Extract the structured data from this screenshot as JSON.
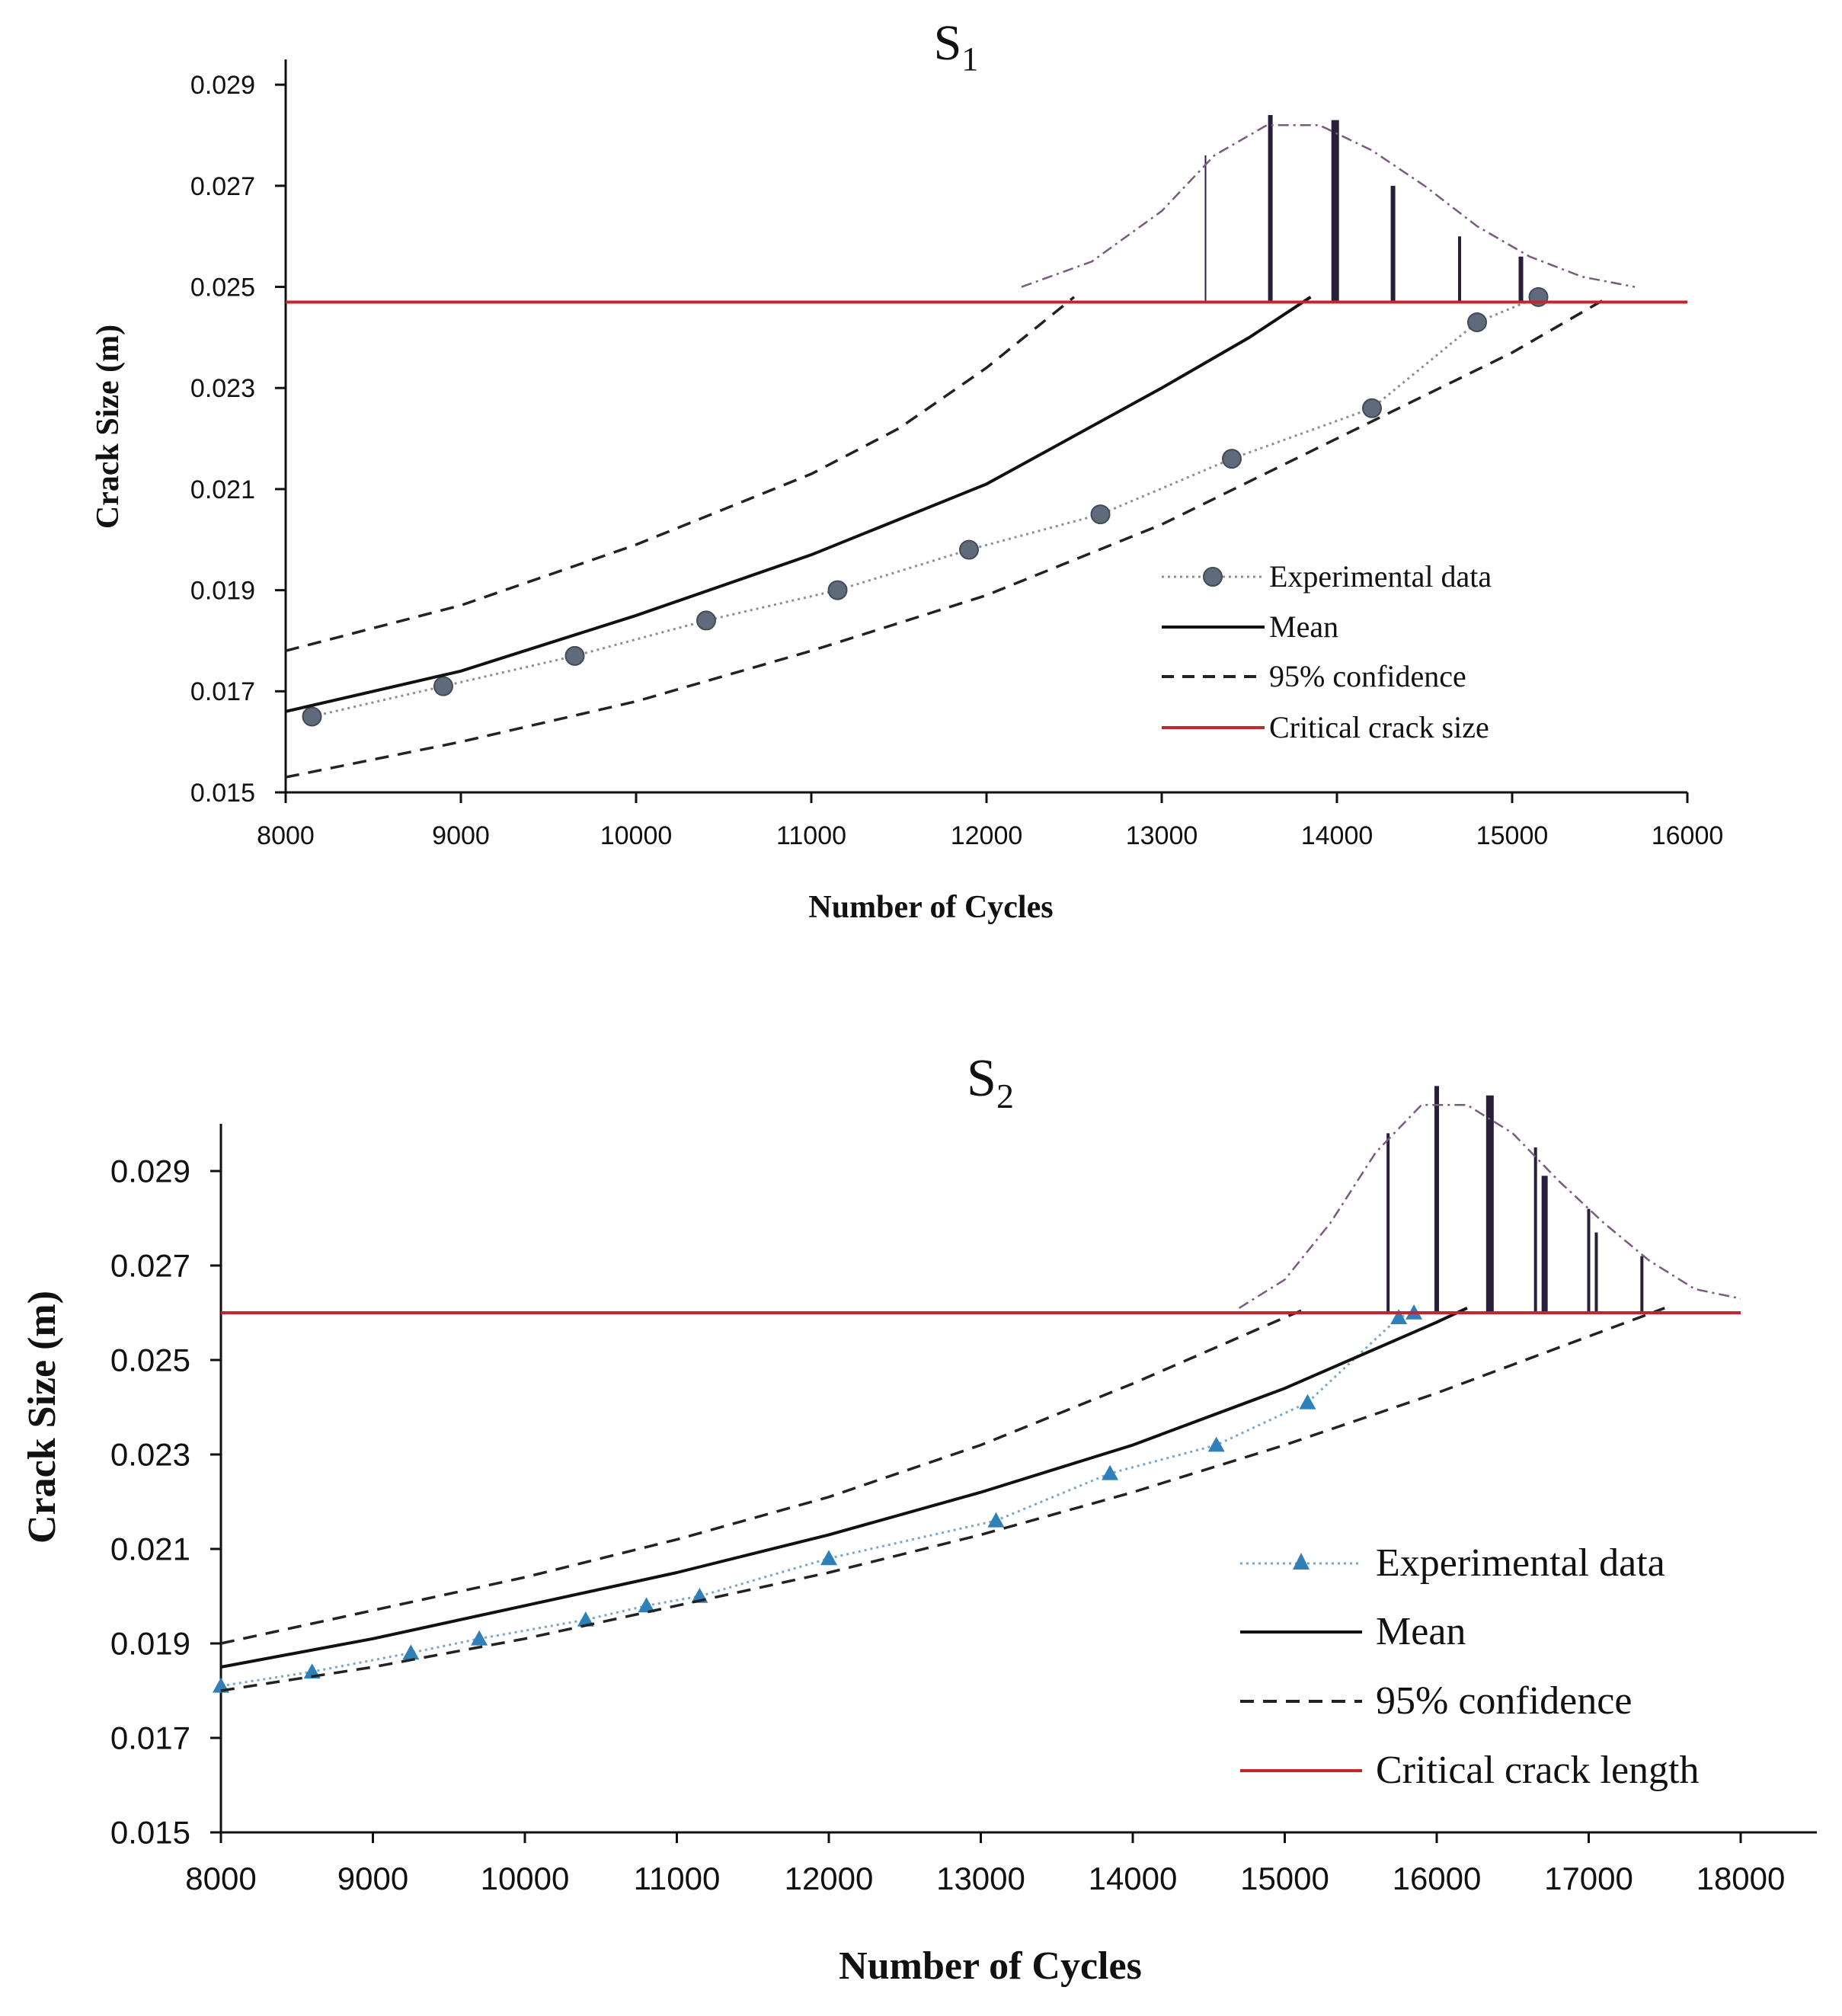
{
  "chart_data": [
    {
      "type": "line",
      "title": "S",
      "title_subscript": "1",
      "xlabel": "Number of Cycles",
      "ylabel": "Crack Size (m)",
      "xlim": [
        8000,
        16000
      ],
      "ylim": [
        0.015,
        0.0295
      ],
      "x_ticks": [
        8000,
        9000,
        10000,
        11000,
        12000,
        13000,
        14000,
        15000,
        16000
      ],
      "y_ticks": [
        0.015,
        0.017,
        0.019,
        0.021,
        0.023,
        0.025,
        0.027,
        0.029
      ],
      "y_tick_labels": [
        "0.015",
        "0.017",
        "0.019",
        "0.021",
        "0.023",
        "0.025",
        "0.027",
        "0.029"
      ],
      "x_tick_labels": [
        "8000",
        "9000",
        "10000",
        "11000",
        "12000",
        "13000",
        "14000",
        "15000",
        "16000"
      ],
      "critical_level": 0.0247,
      "colors": {
        "experimental": "#5f6a7b",
        "mean": "#111111",
        "confidence": "#222222",
        "critical": "#c0282d",
        "histogram": "#2a1f3a",
        "pdf": "#7a5a80"
      },
      "series": [
        {
          "name": "Experimental data",
          "marker": "circle",
          "x": [
            8150,
            8900,
            9650,
            10400,
            11150,
            11900,
            12650,
            13400,
            14200,
            14800,
            15150
          ],
          "y": [
            0.0165,
            0.0171,
            0.0177,
            0.0184,
            0.019,
            0.0198,
            0.0205,
            0.0216,
            0.0226,
            0.0243,
            0.0248
          ]
        },
        {
          "name": "Mean",
          "style": "solid",
          "x": [
            8000,
            9000,
            10000,
            11000,
            12000,
            13000,
            13500,
            13850
          ],
          "y": [
            0.0166,
            0.0174,
            0.0185,
            0.0197,
            0.0211,
            0.023,
            0.024,
            0.0248
          ]
        },
        {
          "name": "95% confidence",
          "style": "dashed",
          "x": [
            8000,
            9000,
            10000,
            11000,
            11500,
            12000,
            12500
          ],
          "y": [
            0.0178,
            0.0187,
            0.0199,
            0.0213,
            0.0222,
            0.0234,
            0.0248
          ]
        },
        {
          "name": "95% confidence (lower)",
          "style": "dashed",
          "x": [
            8000,
            9000,
            10000,
            11000,
            12000,
            13000,
            14000,
            15000,
            15550
          ],
          "y": [
            0.0153,
            0.016,
            0.0168,
            0.0178,
            0.0189,
            0.0203,
            0.022,
            0.0237,
            0.0248
          ]
        },
        {
          "name": "Critical crack size",
          "style": "solid-red",
          "x": [
            8000,
            16000
          ],
          "y": [
            0.0247,
            0.0247
          ]
        }
      ],
      "pdf_curve": {
        "x": [
          12200,
          12600,
          13000,
          13300,
          13600,
          13900,
          14200,
          14500,
          14800,
          15100,
          15400,
          15700
        ],
        "y": [
          0.025,
          0.0255,
          0.0265,
          0.0276,
          0.0282,
          0.0282,
          0.0277,
          0.027,
          0.0262,
          0.0256,
          0.0252,
          0.025
        ]
      },
      "histogram_bars": [
        {
          "x": 13250,
          "top": 0.0276,
          "w": 1
        },
        {
          "x": 13620,
          "top": 0.0284,
          "w": 3
        },
        {
          "x": 13990,
          "top": 0.0283,
          "w": 5
        },
        {
          "x": 14320,
          "top": 0.027,
          "w": 3
        },
        {
          "x": 14700,
          "top": 0.026,
          "w": 2
        },
        {
          "x": 15050,
          "top": 0.0256,
          "w": 3
        }
      ],
      "legend": [
        "Experimental data",
        "Mean",
        "95% confidence",
        "Critical crack size"
      ]
    },
    {
      "type": "line",
      "title": "S",
      "title_subscript": "2",
      "xlabel": "Number of Cycles",
      "ylabel": "Crack Size (m)",
      "xlim": [
        8000,
        18500
      ],
      "ylim": [
        0.015,
        0.03
      ],
      "x_ticks": [
        8000,
        9000,
        10000,
        11000,
        12000,
        13000,
        14000,
        15000,
        16000,
        17000,
        18000
      ],
      "y_ticks": [
        0.015,
        0.017,
        0.019,
        0.021,
        0.023,
        0.025,
        0.027,
        0.029
      ],
      "y_tick_labels": [
        "0.015",
        "0.017",
        "0.019",
        "0.021",
        "0.023",
        "0.025",
        "0.027",
        "0.029"
      ],
      "x_tick_labels": [
        "8000",
        "9000",
        "10000",
        "11000",
        "12000",
        "13000",
        "14000",
        "15000",
        "16000",
        "17000",
        "18000"
      ],
      "critical_level": 0.026,
      "colors": {
        "experimental": "#2f7fb8",
        "mean": "#111111",
        "confidence": "#222222",
        "critical": "#c0282d",
        "histogram": "#2a1f3a",
        "pdf": "#7a5a80"
      },
      "series": [
        {
          "name": "Experimental data",
          "marker": "triangle",
          "x": [
            8000,
            8600,
            9250,
            9700,
            10400,
            10800,
            11150,
            12000,
            13100,
            13850,
            14550,
            15150,
            15750,
            15850
          ],
          "y": [
            0.0181,
            0.0184,
            0.0188,
            0.0191,
            0.0195,
            0.0198,
            0.02,
            0.0208,
            0.0216,
            0.0226,
            0.0232,
            0.0241,
            0.0259,
            0.026
          ]
        },
        {
          "name": "Mean",
          "style": "solid",
          "x": [
            8000,
            9000,
            10000,
            11000,
            12000,
            13000,
            14000,
            15000,
            16000,
            16200
          ],
          "y": [
            0.0185,
            0.0191,
            0.0198,
            0.0205,
            0.0213,
            0.0222,
            0.0232,
            0.0244,
            0.0258,
            0.0261
          ]
        },
        {
          "name": "95% confidence",
          "style": "dashed",
          "x": [
            8000,
            9000,
            10000,
            11000,
            12000,
            13000,
            14000,
            15000,
            15150
          ],
          "y": [
            0.019,
            0.0197,
            0.0204,
            0.0212,
            0.0221,
            0.0232,
            0.0245,
            0.0259,
            0.0261
          ]
        },
        {
          "name": "95% confidence (lower)",
          "style": "dashed",
          "x": [
            8000,
            9000,
            10000,
            11000,
            12000,
            13000,
            14000,
            15000,
            16000,
            17000,
            17500
          ],
          "y": [
            0.018,
            0.0185,
            0.0191,
            0.0198,
            0.0205,
            0.0213,
            0.0222,
            0.0232,
            0.0243,
            0.0255,
            0.0261
          ]
        },
        {
          "name": "Critical crack length",
          "style": "solid-red",
          "x": [
            8000,
            18000
          ],
          "y": [
            0.026,
            0.026
          ]
        }
      ],
      "pdf_curve": {
        "x": [
          14700,
          15000,
          15300,
          15600,
          15900,
          16200,
          16500,
          16800,
          17100,
          17400,
          17700,
          18000
        ],
        "y": [
          0.0261,
          0.0267,
          0.0279,
          0.0294,
          0.0304,
          0.0304,
          0.0298,
          0.0288,
          0.0279,
          0.0271,
          0.0265,
          0.0263
        ]
      },
      "histogram_bars": [
        {
          "x": 15680,
          "top": 0.0298,
          "w": 2
        },
        {
          "x": 16000,
          "top": 0.0308,
          "w": 3
        },
        {
          "x": 16350,
          "top": 0.0306,
          "w": 5
        },
        {
          "x": 16650,
          "top": 0.0295,
          "w": 2
        },
        {
          "x": 16710,
          "top": 0.0289,
          "w": 4
        },
        {
          "x": 17000,
          "top": 0.0282,
          "w": 2
        },
        {
          "x": 17050,
          "top": 0.0277,
          "w": 2
        },
        {
          "x": 17350,
          "top": 0.0272,
          "w": 2
        }
      ],
      "legend": [
        "Experimental data",
        "Mean",
        "95% confidence",
        "Critical crack length"
      ]
    }
  ]
}
